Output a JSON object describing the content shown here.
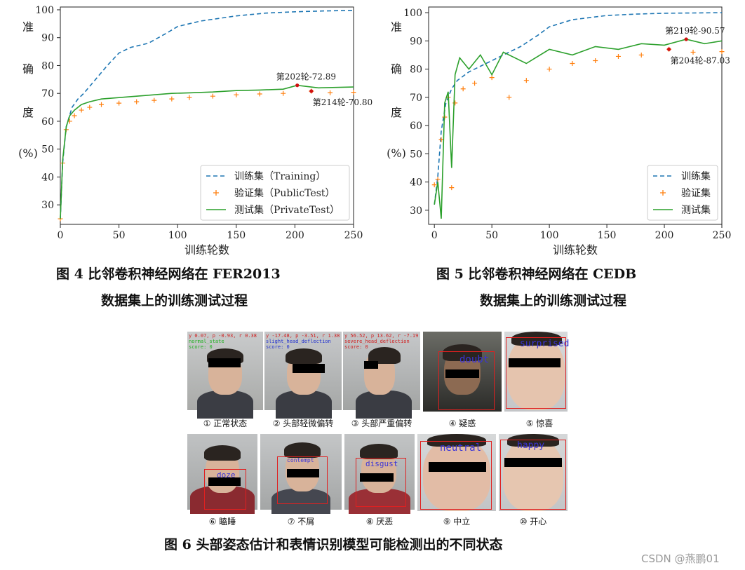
{
  "charts": [
    {
      "chart_data": {
        "type": "line",
        "ylabel_chars": [
          "准",
          "确",
          "度",
          "(%)"
        ],
        "xlabel": "训练轮数",
        "xlim": [
          0,
          250
        ],
        "ylim": [
          23,
          101
        ],
        "xticks": [
          "0",
          "50",
          "100",
          "150",
          "200",
          "250"
        ],
        "yticks": [
          "30",
          "40",
          "50",
          "60",
          "70",
          "80",
          "90",
          "100"
        ],
        "legend_position": "lower-right",
        "series": [
          {
            "name": "训练集（Training）",
            "style": "dashed",
            "color": "#1f77b4",
            "x": [
              0,
              2,
              5,
              10,
              15,
              20,
              30,
              40,
              50,
              60,
              75,
              90,
              100,
              120,
              150,
              175,
              200,
              225,
              250
            ],
            "y": [
              25,
              45,
              58,
              65,
              68,
              70,
              75,
              80,
              84.5,
              86.5,
              88,
              91.5,
              94,
              96,
              97.8,
              98.8,
              99.3,
              99.6,
              99.8
            ]
          },
          {
            "name": "验证集（PublicTest）",
            "style": "marker",
            "color": "#ff7f0e",
            "x": [
              0,
              2,
              5,
              8,
              12,
              18,
              25,
              35,
              50,
              65,
              80,
              95,
              110,
              130,
              150,
              170,
              190,
              214,
              230,
              250
            ],
            "y": [
              25,
              45,
              57,
              60,
              62,
              64,
              65,
              66,
              66.5,
              67,
              67.5,
              68,
              68.5,
              69,
              69.5,
              69.8,
              70,
              70.8,
              70.2,
              70.4
            ]
          },
          {
            "name": "测试集（PrivateTest）",
            "style": "solid",
            "color": "#2ca02c",
            "x": [
              0,
              2,
              5,
              8,
              12,
              18,
              25,
              35,
              50,
              65,
              80,
              95,
              110,
              130,
              150,
              170,
              190,
              202,
              220,
              250
            ],
            "y": [
              25,
              46,
              58,
              62,
              64,
              66,
              67,
              68,
              68.5,
              69,
              69.5,
              70,
              70.2,
              70.5,
              71,
              71.2,
              71.5,
              72.89,
              72,
              72.3
            ]
          }
        ],
        "annotations": [
          {
            "text": "第202轮-72.89",
            "x": 202,
            "y": 72.89,
            "series": 2
          },
          {
            "text": "第214轮-70.80",
            "x": 214,
            "y": 70.8,
            "series": 1
          }
        ]
      },
      "caption_line1": "图 4    比邻卷积神经网络在 FER2013",
      "caption_line2": "数据集上的训练测试过程"
    },
    {
      "chart_data": {
        "type": "line",
        "ylabel_chars": [
          "准",
          "确",
          "度",
          "(%)"
        ],
        "xlabel": "训练轮数",
        "xlim": [
          -5,
          250
        ],
        "ylim": [
          25,
          102
        ],
        "xticks": [
          "0",
          "50",
          "100",
          "150",
          "200",
          "250"
        ],
        "yticks": [
          "30",
          "40",
          "50",
          "60",
          "70",
          "80",
          "90",
          "100"
        ],
        "legend_position": "lower-right",
        "series": [
          {
            "name": "训练集",
            "style": "dashed",
            "color": "#1f77b4",
            "x": [
              0,
              3,
              6,
              10,
              15,
              20,
              30,
              40,
              50,
              60,
              75,
              90,
              100,
              120,
              150,
              175,
              200,
              225,
              250
            ],
            "y": [
              32,
              42,
              58,
              68,
              73,
              76,
              79,
              81,
              83,
              85,
              88,
              92,
              95,
              97.5,
              99,
              99.5,
              99.8,
              99.9,
              100
            ]
          },
          {
            "name": "验证集",
            "style": "marker",
            "color": "#ff7f0e",
            "x": [
              0,
              3,
              6,
              9,
              12,
              15,
              18,
              25,
              35,
              50,
              65,
              80,
              100,
              120,
              140,
              160,
              180,
              204,
              225,
              250
            ],
            "y": [
              39,
              41,
              55,
              63,
              70,
              38,
              68,
              73,
              75,
              77,
              70,
              76,
              80,
              82,
              83,
              84.5,
              85,
              87.03,
              86,
              86.2
            ]
          },
          {
            "name": "测试集",
            "style": "solid",
            "color": "#2ca02c",
            "x": [
              0,
              3,
              6,
              9,
              12,
              15,
              18,
              22,
              30,
              40,
              50,
              60,
              80,
              100,
              120,
              140,
              160,
              180,
              200,
              219,
              235,
              250
            ],
            "y": [
              32,
              40,
              27,
              68,
              72,
              45,
              78,
              84,
              80,
              85,
              78,
              86,
              82,
              87,
              85,
              88,
              87,
              89,
              88.5,
              90.57,
              89,
              90
            ]
          }
        ],
        "annotations": [
          {
            "text": "第219轮-90.57",
            "x": 219,
            "y": 90.57,
            "series": 2
          },
          {
            "text": "第204轮-87.03",
            "x": 204,
            "y": 87.03,
            "series": 1
          }
        ]
      },
      "caption_line1": "图 5    比邻卷积神经网络在 CEDB",
      "caption_line2": "数据集上的训练测试过程"
    }
  ],
  "figure6": {
    "caption": "图 6    头部姿态估计和表情识别模型可能检测出的不同状态",
    "top_row": [
      {
        "label": "① 正常状态",
        "hud": [
          "y 0.07, p -0.93, r 0.38",
          "normal_state",
          "score: 0"
        ]
      },
      {
        "label": "② 头部轻微偏转",
        "hud": [
          "y -17.48, p -3.51, r 1.38",
          "slight_head_deflection",
          "score: 0"
        ]
      },
      {
        "label": "③ 头部严重偏转",
        "hud": [
          "y 56.52, p 13.62, r -7.19",
          "severe_head_deflection",
          "score: 0"
        ]
      },
      {
        "label": "④ 疑惑",
        "emotion": "doubt"
      },
      {
        "label": "⑤ 惊喜",
        "emotion": "surprised"
      }
    ],
    "bottom_row": [
      {
        "label": "⑥ 瞌睡",
        "emotion": "doze"
      },
      {
        "label": "⑦ 不屑",
        "emotion": "contempt"
      },
      {
        "label": "⑧ 厌恶",
        "emotion": "disgust"
      },
      {
        "label": "⑨ 中立",
        "emotion": "neutral"
      },
      {
        "label": "⑩ 开心",
        "emotion": "happy"
      }
    ]
  },
  "watermark": "CSDN @燕鹏01"
}
